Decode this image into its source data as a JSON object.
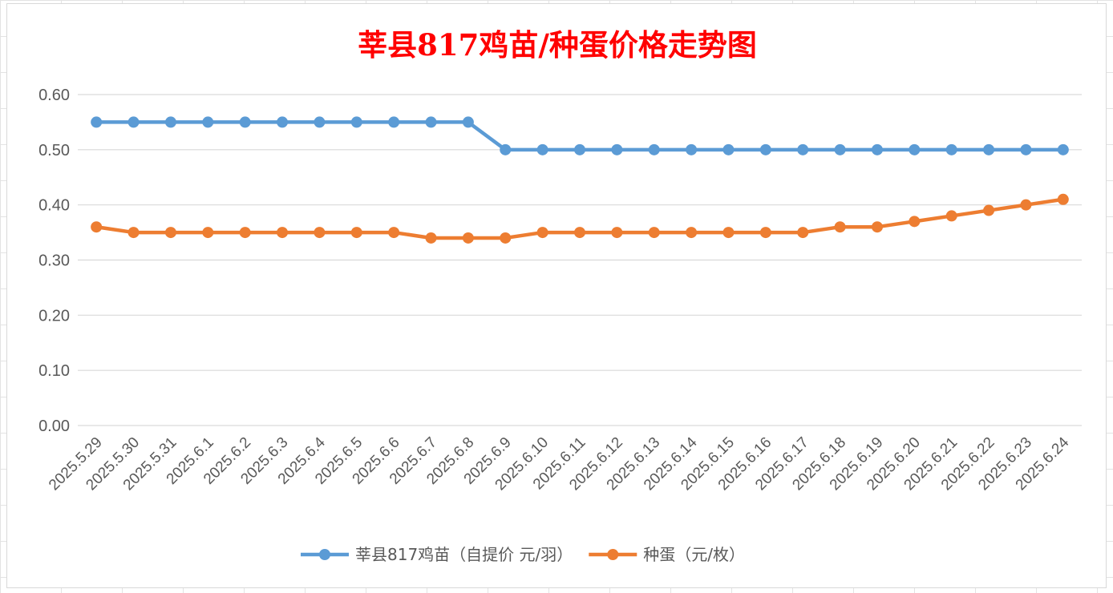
{
  "chart_data": {
    "type": "line",
    "title": "莘县817鸡苗/种蛋价格走势图",
    "xlabel": "",
    "ylabel": "",
    "ylim": [
      0,
      0.6
    ],
    "y_ticks": [
      "0.00",
      "0.10",
      "0.20",
      "0.30",
      "0.40",
      "0.50",
      "0.60"
    ],
    "grid": "horizontal",
    "legend_position": "bottom",
    "categories": [
      "2025.5.29",
      "2025.5.30",
      "2025.5.31",
      "2025.6.1",
      "2025.6.2",
      "2025.6.3",
      "2025.6.4",
      "2025.6.5",
      "2025.6.6",
      "2025.6.7",
      "2025.6.8",
      "2025.6.9",
      "2025.6.10",
      "2025.6.11",
      "2025.6.12",
      "2025.6.13",
      "2025.6.14",
      "2025.6.15",
      "2025.6.16",
      "2025.6.17",
      "2025.6.18",
      "2025.6.19",
      "2025.6.20",
      "2025.6.21",
      "2025.6.22",
      "2025.6.23",
      "2025.6.24"
    ],
    "series": [
      {
        "name": "莘县817鸡苗（自提价 元/羽）",
        "color": "#5b9bd5",
        "values": [
          0.55,
          0.55,
          0.55,
          0.55,
          0.55,
          0.55,
          0.55,
          0.55,
          0.55,
          0.55,
          0.55,
          0.5,
          0.5,
          0.5,
          0.5,
          0.5,
          0.5,
          0.5,
          0.5,
          0.5,
          0.5,
          0.5,
          0.5,
          0.5,
          0.5,
          0.5,
          0.5
        ]
      },
      {
        "name": "种蛋（元/枚）",
        "color": "#ed7d31",
        "values": [
          0.36,
          0.35,
          0.35,
          0.35,
          0.35,
          0.35,
          0.35,
          0.35,
          0.35,
          0.34,
          0.34,
          0.34,
          0.35,
          0.35,
          0.35,
          0.35,
          0.35,
          0.35,
          0.35,
          0.35,
          0.36,
          0.36,
          0.37,
          0.38,
          0.39,
          0.4,
          0.41
        ]
      }
    ]
  }
}
